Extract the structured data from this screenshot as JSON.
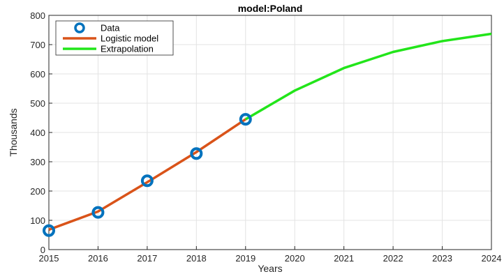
{
  "chart_data": {
    "type": "line",
    "title": "model:Poland",
    "xlabel": "Years",
    "ylabel": "Thousands",
    "xlim": [
      2015,
      2024
    ],
    "ylim": [
      0,
      800
    ],
    "xticks": [
      "2015",
      "2016",
      "2017",
      "2018",
      "2019",
      "2020",
      "2021",
      "2022",
      "2023",
      "2024"
    ],
    "yticks": [
      "0",
      "100",
      "200",
      "300",
      "400",
      "500",
      "600",
      "700",
      "800"
    ],
    "grid": true,
    "legend_position": "top-left",
    "series": [
      {
        "name": "Data",
        "style": "markers",
        "color": "#0072BD",
        "x": [
          2015,
          2016,
          2017,
          2018,
          2019
        ],
        "y": [
          65,
          127,
          235,
          328,
          445
        ]
      },
      {
        "name": "Logistic model",
        "style": "line",
        "color": "#D95319",
        "x": [
          2015,
          2016,
          2017,
          2018,
          2019
        ],
        "y": [
          68,
          130,
          230,
          333,
          445
        ]
      },
      {
        "name": "Extrapolation",
        "style": "line",
        "color": "#22E51A",
        "x": [
          2019,
          2020,
          2021,
          2022,
          2023,
          2024
        ],
        "y": [
          445,
          543,
          620,
          675,
          712,
          737
        ]
      }
    ]
  }
}
